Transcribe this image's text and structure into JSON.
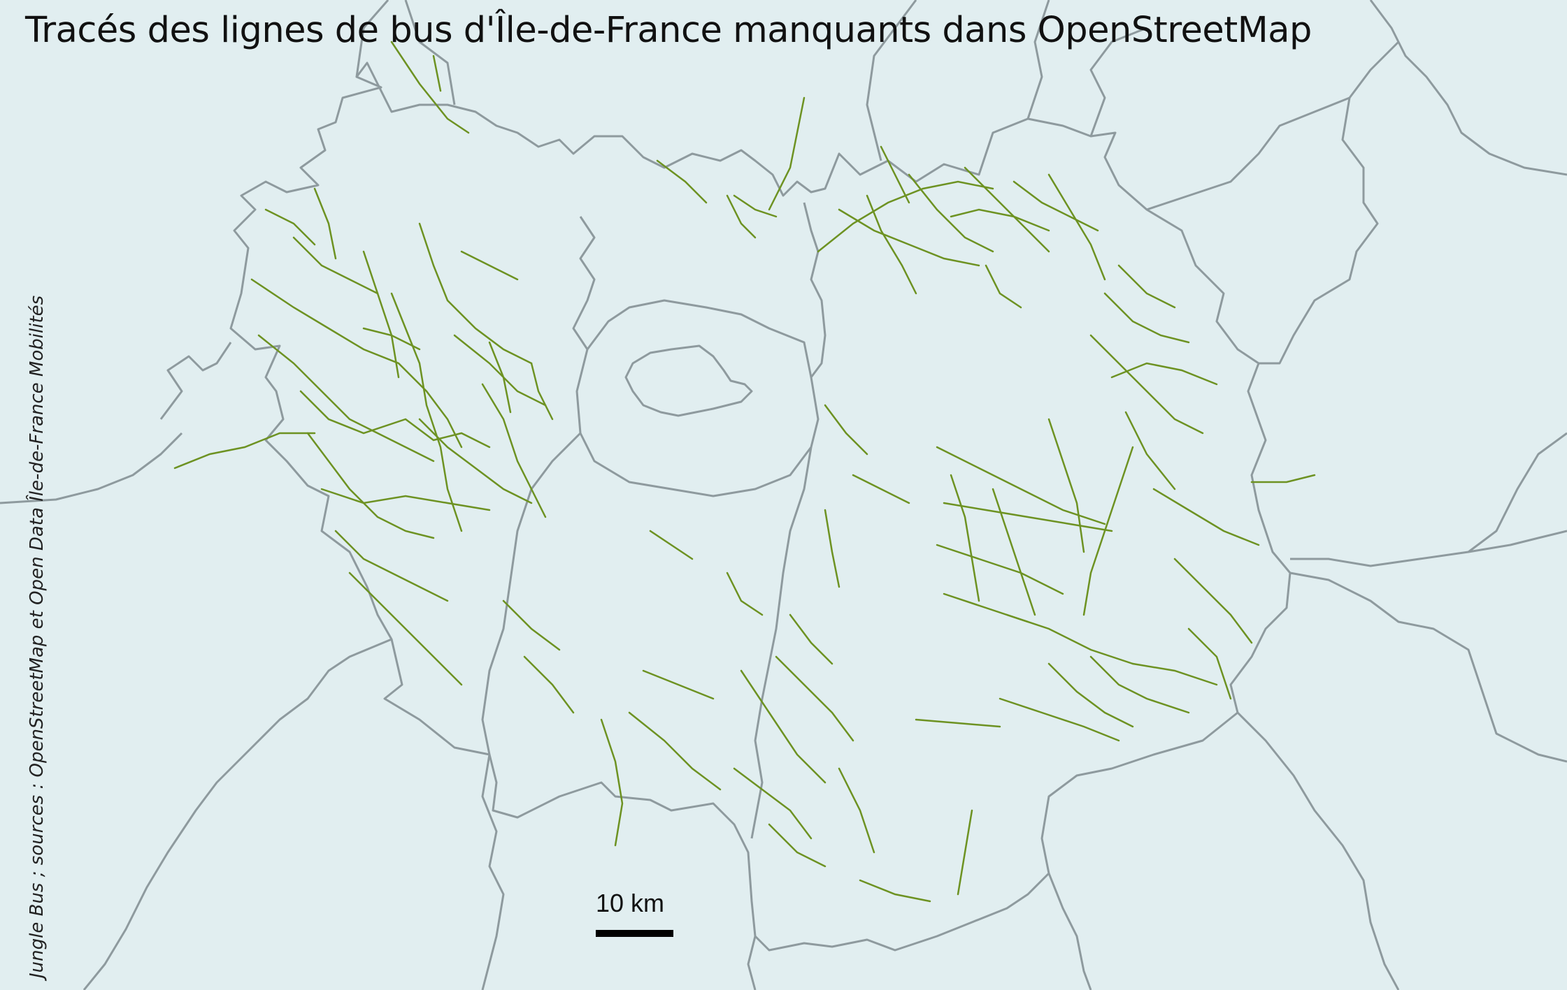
{
  "title": "Tracés des lignes de bus d'Île-de-France manquants dans OpenStreetMap",
  "credits": "Jungle Bus ; sources : OpenStreetMap et Open Data Île-de-France Mobilités",
  "scale": {
    "label": "10 km"
  },
  "colors": {
    "background": "#e1eef0",
    "boundary": "#8e9a9e",
    "bus_route": "#6d9222"
  },
  "legend_symbols": {
    "bus_route": "green-line",
    "boundary": "grey-line"
  }
}
